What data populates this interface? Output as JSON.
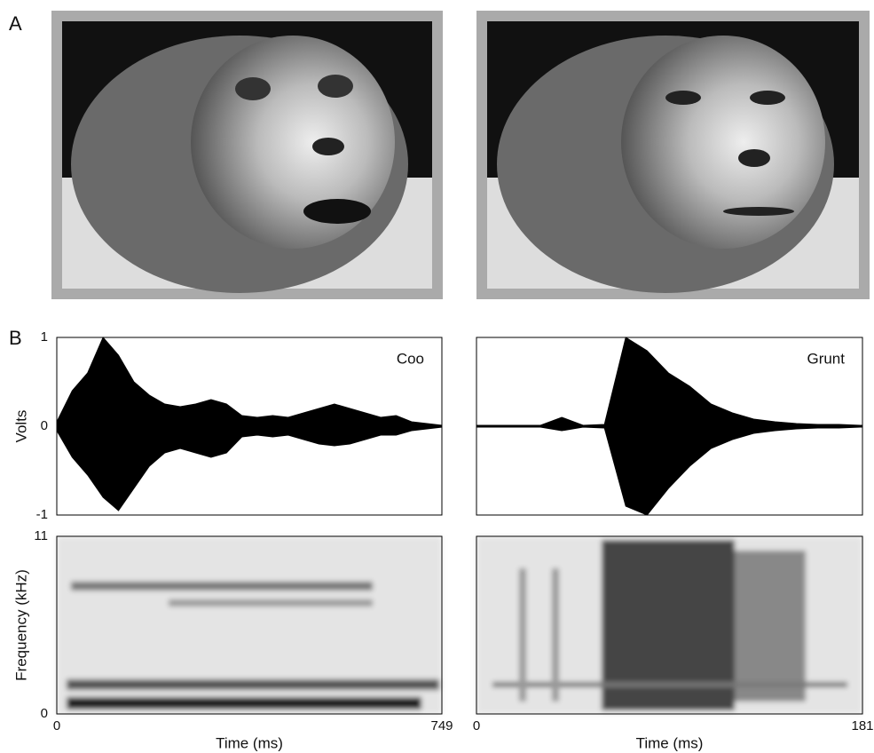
{
  "panel_labels": [
    "A",
    "B"
  ],
  "chart_data": [
    {
      "type": "waveform",
      "title": "Coo",
      "ylabel": "Volts",
      "color": "#000",
      "x": [
        0,
        30,
        60,
        90,
        120,
        150,
        180,
        210,
        240,
        270,
        300,
        330,
        360,
        390,
        420,
        450,
        480,
        510,
        540,
        570,
        600,
        630,
        660,
        690,
        720,
        749
      ],
      "series": [
        {
          "values": [
            0.05,
            0.4,
            0.6,
            1.0,
            0.8,
            0.5,
            0.35,
            0.25,
            0.22,
            0.25,
            0.3,
            0.25,
            0.12,
            0.1,
            0.12,
            0.1,
            0.15,
            0.2,
            0.25,
            0.2,
            0.15,
            0.1,
            0.12,
            0.05,
            0.03,
            0.01
          ]
        },
        {
          "values": [
            -0.05,
            -0.35,
            -0.55,
            -0.8,
            -0.95,
            -0.7,
            -0.45,
            -0.3,
            -0.25,
            -0.3,
            -0.35,
            -0.3,
            -0.12,
            -0.1,
            -0.12,
            -0.1,
            -0.15,
            -0.2,
            -0.22,
            -0.2,
            -0.15,
            -0.1,
            -0.1,
            -0.05,
            -0.03,
            -0.01
          ]
        }
      ],
      "xlim": [
        0,
        749
      ],
      "ylim": [
        -1,
        1
      ],
      "yticks": [
        1,
        0,
        -1
      ]
    },
    {
      "type": "spectrogram",
      "ylabel": "Frequency (kHz)",
      "xlabel": "Time (ms)",
      "xlim": [
        0,
        749
      ],
      "xticks": [
        0,
        749
      ],
      "ylim": [
        0,
        11
      ],
      "yticks": [
        11,
        0
      ]
    },
    {
      "type": "waveform",
      "title": "Grunt",
      "color": "#000",
      "x": [
        0,
        10,
        20,
        30,
        40,
        50,
        60,
        70,
        80,
        90,
        100,
        110,
        120,
        130,
        140,
        150,
        160,
        170,
        180,
        181
      ],
      "series": [
        {
          "values": [
            0.01,
            0.01,
            0.01,
            0.01,
            0.1,
            0.01,
            0.02,
            1.0,
            0.85,
            0.6,
            0.45,
            0.25,
            0.15,
            0.08,
            0.05,
            0.03,
            0.02,
            0.02,
            0.01,
            0.01
          ]
        },
        {
          "values": [
            -0.01,
            -0.01,
            -0.01,
            -0.01,
            -0.05,
            -0.01,
            -0.02,
            -0.9,
            -1.0,
            -0.7,
            -0.45,
            -0.25,
            -0.15,
            -0.08,
            -0.05,
            -0.03,
            -0.02,
            -0.02,
            -0.01,
            -0.01
          ]
        }
      ],
      "xlim": [
        0,
        181
      ],
      "ylim": [
        -1,
        1
      ]
    },
    {
      "type": "spectrogram",
      "xlabel": "Time (ms)",
      "xlim": [
        0,
        181
      ],
      "xticks": [
        0,
        181
      ],
      "ylim": [
        0,
        11
      ]
    }
  ]
}
